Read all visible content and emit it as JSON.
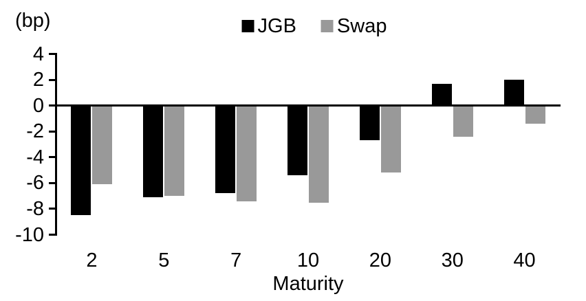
{
  "chart_data": {
    "type": "bar",
    "unit_label": "(bp)",
    "xlabel": "Maturity",
    "categories": [
      "2",
      "5",
      "7",
      "10",
      "20",
      "30",
      "40"
    ],
    "series": [
      {
        "name": "JGB",
        "color": "#000000",
        "values": [
          -8.5,
          -7.1,
          -6.8,
          -5.4,
          -2.7,
          1.7,
          2.0
        ]
      },
      {
        "name": "Swap",
        "color": "#999999",
        "values": [
          -6.1,
          -7.0,
          -7.4,
          -7.5,
          -5.2,
          -2.4,
          -1.4
        ]
      }
    ],
    "ylim": [
      -10,
      4
    ],
    "yticks": [
      4,
      2,
      0,
      -2,
      -4,
      -6,
      -8,
      -10
    ],
    "legend_position": "top",
    "grid": false,
    "axis_color": "#000000",
    "background": "#ffffff"
  }
}
